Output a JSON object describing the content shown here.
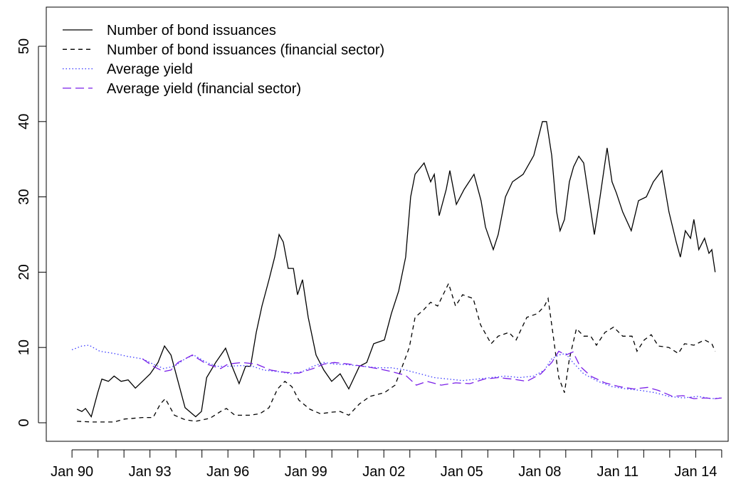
{
  "chart_data": {
    "type": "line",
    "xlim": [
      1989.01,
      2015.25
    ],
    "ylim": [
      -2.46,
      55.2
    ],
    "yticks": [
      0,
      10,
      20,
      30,
      40,
      50
    ],
    "xticks": [
      {
        "value": 1990,
        "label": "Jan 90"
      },
      {
        "value": 1993,
        "label": "Jan 93"
      },
      {
        "value": 1996,
        "label": "Jan 96"
      },
      {
        "value": 1999,
        "label": "Jan 99"
      },
      {
        "value": 2002,
        "label": "Jan 02"
      },
      {
        "value": 2005,
        "label": "Jan 05"
      },
      {
        "value": 2008,
        "label": "Jan 08"
      },
      {
        "value": 2011,
        "label": "Jan 11"
      },
      {
        "value": 2014,
        "label": "Jan 14"
      }
    ],
    "xticks_minor": [
      1991,
      1992,
      1994,
      1995,
      1997,
      1998,
      2000,
      2001,
      2003,
      2004,
      2006,
      2007,
      2009,
      2010,
      2012,
      2013,
      2015
    ],
    "legend": "top-left",
    "series": [
      {
        "name": "Number of bond issuances",
        "color": "#000000",
        "linestyle": "solid",
        "x": [
          1990.19,
          1990.38,
          1990.52,
          1990.74,
          1990.99,
          1991.15,
          1991.4,
          1991.62,
          1991.89,
          1992.16,
          1992.44,
          1992.71,
          1993.01,
          1993.31,
          1993.56,
          1993.81,
          1994.08,
          1994.35,
          1994.76,
          1994.98,
          1995.18,
          1995.53,
          1995.91,
          1996.16,
          1996.43,
          1996.68,
          1996.87,
          1997.09,
          1997.31,
          1997.58,
          1997.8,
          1997.97,
          1998.13,
          1998.32,
          1998.52,
          1998.68,
          1998.87,
          1999.09,
          1999.39,
          1999.69,
          1999.99,
          2000.32,
          2000.65,
          2001.06,
          2001.34,
          2001.61,
          2002.02,
          2002.29,
          2002.57,
          2002.84,
          2003.03,
          2003.2,
          2003.55,
          2003.8,
          2003.94,
          2004.13,
          2004.4,
          2004.54,
          2004.79,
          2005.09,
          2005.47,
          2005.74,
          2005.91,
          2006.21,
          2006.4,
          2006.68,
          2006.95,
          2007.36,
          2007.77,
          2008.1,
          2008.26,
          2008.46,
          2008.65,
          2008.78,
          2008.95,
          2009.14,
          2009.3,
          2009.5,
          2009.69,
          2010.1,
          2010.32,
          2010.59,
          2010.78,
          2010.95,
          2011.19,
          2011.52,
          2011.8,
          2012.1,
          2012.37,
          2012.7,
          2012.97,
          2013.25,
          2013.41,
          2013.6,
          2013.8,
          2013.93,
          2014.12,
          2014.34,
          2014.51,
          2014.62,
          2014.75
        ],
        "values": [
          1.8,
          1.5,
          1.9,
          0.8,
          4.0,
          5.8,
          5.5,
          6.2,
          5.5,
          5.7,
          4.6,
          5.5,
          6.5,
          8.0,
          10.2,
          9.0,
          5.5,
          2.0,
          0.8,
          1.5,
          6.0,
          8.0,
          9.9,
          7.5,
          5.2,
          7.5,
          7.5,
          12.0,
          15.5,
          19.0,
          22.0,
          25.0,
          24.0,
          20.5,
          20.5,
          17.0,
          19.0,
          14.0,
          9.0,
          7.0,
          5.5,
          6.5,
          4.5,
          7.5,
          8.0,
          10.5,
          11.0,
          14.5,
          17.5,
          22.0,
          30.0,
          33.0,
          34.5,
          32.0,
          33.0,
          27.5,
          31.0,
          33.5,
          29.0,
          31.0,
          33.0,
          29.5,
          26.0,
          23.0,
          25.0,
          30.0,
          32.0,
          33.0,
          35.5,
          40.0,
          40.0,
          35.5,
          28.0,
          25.5,
          27.0,
          32.0,
          34.0,
          35.4,
          34.5,
          25.0,
          30.0,
          36.5,
          32.0,
          30.5,
          28.0,
          25.5,
          29.5,
          30.0,
          32.0,
          33.5,
          28.0,
          24.0,
          22.0,
          25.5,
          24.5,
          27.0,
          23.0,
          24.5,
          22.5,
          23.0,
          20.0
        ]
      },
      {
        "name": "Number of bond issuances (financial sector)",
        "color": "#000000",
        "linestyle": "dashed",
        "x": [
          1990.19,
          1990.79,
          1991.62,
          1992.03,
          1992.71,
          1993.12,
          1993.4,
          1993.59,
          1993.94,
          1994.35,
          1994.76,
          1995.31,
          1995.72,
          1995.94,
          1996.27,
          1996.82,
          1997.23,
          1997.58,
          1997.91,
          1998.19,
          1998.46,
          1998.73,
          1999.15,
          1999.56,
          1999.97,
          2000.32,
          2000.65,
          2001.06,
          2001.47,
          2002.02,
          2002.43,
          2002.71,
          2002.98,
          2003.2,
          2003.53,
          2003.8,
          2004.07,
          2004.49,
          2004.76,
          2005.03,
          2005.44,
          2005.72,
          2006.13,
          2006.4,
          2006.81,
          2007.09,
          2007.5,
          2007.91,
          2008.18,
          2008.32,
          2008.54,
          2008.73,
          2008.95,
          2009.14,
          2009.41,
          2009.69,
          2009.96,
          2010.18,
          2010.51,
          2010.84,
          2011.19,
          2011.55,
          2011.74,
          2012.02,
          2012.29,
          2012.56,
          2012.97,
          2013.33,
          2013.57,
          2013.93,
          2014.34,
          2014.62,
          2014.75
        ],
        "values": [
          0.2,
          0.1,
          0.1,
          0.5,
          0.7,
          0.7,
          2.5,
          3.2,
          1.0,
          0.4,
          0.2,
          0.6,
          1.5,
          1.9,
          1.0,
          1.0,
          1.2,
          2.0,
          4.5,
          5.5,
          4.8,
          3.0,
          1.8,
          1.2,
          1.4,
          1.5,
          1.0,
          2.5,
          3.5,
          4.0,
          5.0,
          7.5,
          10.0,
          14.0,
          15.0,
          16.0,
          15.5,
          18.5,
          15.5,
          17.0,
          16.5,
          13.0,
          10.5,
          11.5,
          12.0,
          11.0,
          14.0,
          14.5,
          15.5,
          16.5,
          11.0,
          6.0,
          4.0,
          8.5,
          12.5,
          11.5,
          11.5,
          10.3,
          12.0,
          12.7,
          11.5,
          11.5,
          9.5,
          11.0,
          11.7,
          10.2,
          10.0,
          9.2,
          10.5,
          10.3,
          11.0,
          10.5,
          9.5
        ]
      },
      {
        "name": "Average yield",
        "color": "#3b3bff",
        "linestyle": "dotted",
        "x": [
          1990.0,
          1990.38,
          1990.66,
          1991.07,
          1991.62,
          1992.16,
          1992.71,
          1993.12,
          1993.53,
          1993.94,
          1994.35,
          1994.68,
          1995.18,
          1995.59,
          1996.0,
          1996.54,
          1996.95,
          1997.37,
          1997.91,
          1998.46,
          1998.87,
          1999.28,
          1999.69,
          2000.1,
          2000.65,
          2001.2,
          2001.75,
          2002.29,
          2002.84,
          2003.39,
          2003.94,
          2004.49,
          2005.03,
          2005.58,
          2006.13,
          2006.68,
          2007.22,
          2007.77,
          2008.18,
          2008.46,
          2008.73,
          2009.0,
          2009.28,
          2009.69,
          2010.24,
          2010.78,
          2011.33,
          2011.88,
          2012.43,
          2012.97,
          2013.52,
          2014.07,
          2014.62,
          2015.0
        ],
        "values": [
          9.7,
          10.2,
          10.3,
          9.5,
          9.2,
          8.8,
          8.5,
          7.8,
          7.2,
          7.5,
          8.5,
          9.0,
          8.0,
          7.5,
          7.5,
          7.6,
          7.5,
          7.0,
          6.8,
          6.5,
          6.8,
          7.5,
          8.0,
          7.8,
          7.7,
          7.5,
          7.3,
          7.3,
          7.0,
          6.5,
          6.0,
          5.8,
          5.6,
          5.8,
          6.0,
          6.2,
          6.0,
          6.2,
          7.0,
          8.5,
          9.0,
          9.2,
          8.0,
          6.5,
          5.5,
          4.8,
          4.5,
          4.3,
          4.0,
          3.5,
          3.3,
          3.5,
          3.2,
          3.3
        ]
      },
      {
        "name": "Average yield (financial sector)",
        "color": "#7a1fe8",
        "linestyle": "longdash",
        "x": [
          1992.71,
          1993.12,
          1993.53,
          1993.81,
          1994.08,
          1994.63,
          1995.18,
          1995.72,
          1996.0,
          1996.54,
          1997.09,
          1997.64,
          1998.19,
          1998.73,
          1999.28,
          1999.69,
          2000.1,
          2000.65,
          2001.2,
          2001.75,
          2002.29,
          2002.84,
          2003.25,
          2003.66,
          2004.21,
          2004.76,
          2005.31,
          2005.86,
          2006.4,
          2006.95,
          2007.5,
          2008.04,
          2008.46,
          2008.73,
          2009.0,
          2009.28,
          2009.55,
          2009.96,
          2010.51,
          2011.06,
          2011.61,
          2012.15,
          2012.56,
          2013.11,
          2013.52,
          2013.93,
          2014.34,
          2014.75,
          2015.0
        ],
        "values": [
          8.5,
          7.5,
          6.8,
          7.0,
          8.0,
          9.0,
          7.8,
          7.2,
          7.8,
          8.0,
          7.8,
          7.0,
          6.7,
          6.6,
          7.2,
          7.8,
          8.0,
          7.8,
          7.5,
          7.2,
          6.8,
          6.3,
          5.0,
          5.5,
          5.0,
          5.3,
          5.2,
          5.8,
          6.0,
          5.8,
          5.5,
          6.5,
          8.0,
          9.5,
          9.0,
          9.4,
          7.5,
          6.2,
          5.3,
          4.8,
          4.5,
          4.7,
          4.3,
          3.5,
          3.6,
          3.2,
          3.3,
          3.2,
          3.3
        ]
      }
    ]
  }
}
